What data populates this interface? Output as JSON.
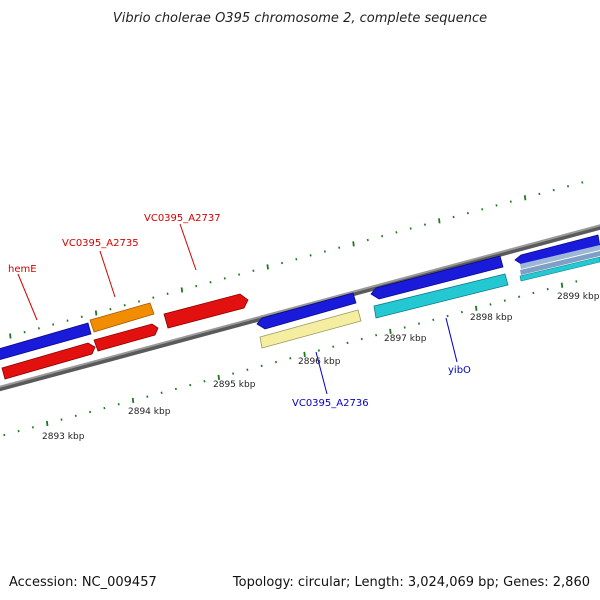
{
  "title": "Vibrio cholerae O395 chromosome 2, complete sequence",
  "footer": {
    "accession": "Accession: NC_009457",
    "summary": "Topology: circular; Length: 3,024,069 bp; Genes: 2,860"
  },
  "colors": {
    "background": "#ffffff",
    "backbone": "#8a8a8a",
    "tick": "#1e7a1e",
    "label_forward": "#d40000",
    "label_reverse": "#0000cc",
    "gene_blue": "#1a1adb",
    "gene_red": "#e31010",
    "gene_orange": "#f28c00",
    "gene_cyan": "#23c8d2",
    "gene_paleyellow": "#f5eea0"
  },
  "tick_labels": [
    "2893 kbp",
    "2894 kbp",
    "2895 kbp",
    "2896 kbp",
    "2897 kbp",
    "2898 kbp",
    "2899 kbp"
  ],
  "gene_labels": [
    {
      "text": "hemE",
      "color": "label_forward"
    },
    {
      "text": "VC0395_A2735",
      "color": "label_forward"
    },
    {
      "text": "VC0395_A2737",
      "color": "label_forward"
    },
    {
      "text": "VC0395_A2736",
      "color": "label_reverse"
    },
    {
      "text": "yibO",
      "color": "label_reverse"
    }
  ]
}
